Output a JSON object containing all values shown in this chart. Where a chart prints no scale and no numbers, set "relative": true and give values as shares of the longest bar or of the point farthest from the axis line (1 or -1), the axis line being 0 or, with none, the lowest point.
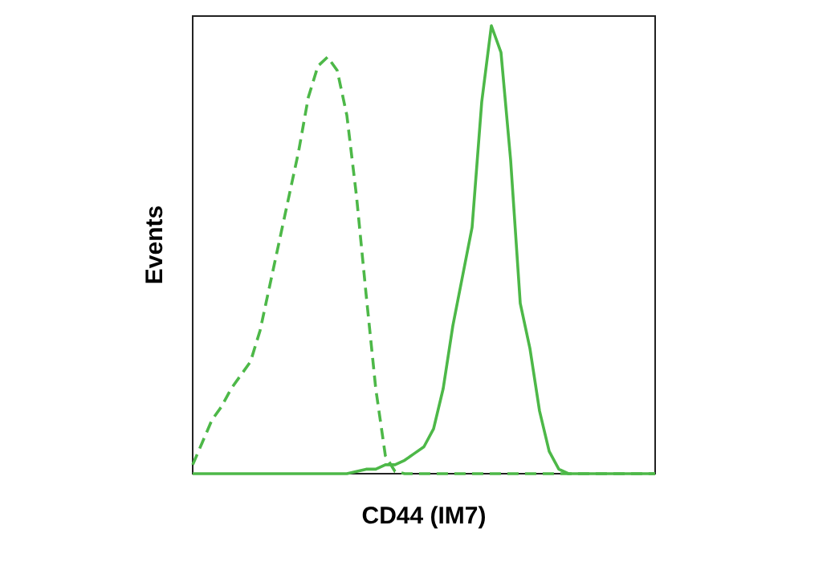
{
  "chart_data": {
    "type": "line",
    "relative": true,
    "xlabel": "CD44 (IM7)",
    "ylabel": "Events",
    "categories": [
      null,
      null,
      null,
      null,
      null,
      null,
      null,
      null,
      null,
      null,
      null,
      null,
      null,
      null,
      null,
      null,
      null,
      null,
      null,
      null,
      null,
      null,
      null,
      null,
      null,
      null,
      null,
      null,
      null,
      null,
      null,
      null,
      null,
      null,
      null,
      null,
      null,
      null,
      null,
      null,
      null,
      null,
      null,
      null,
      null,
      null,
      null,
      null,
      null
    ],
    "series": [
      {
        "color": "#4db848",
        "line_style": "dashed",
        "values": [
          0.02,
          0.07,
          0.12,
          0.15,
          0.19,
          0.22,
          0.25,
          0.32,
          0.42,
          0.52,
          0.62,
          0.72,
          0.84,
          0.91,
          0.93,
          0.9,
          0.8,
          0.62,
          0.4,
          0.19,
          0.04,
          0.005,
          0,
          0,
          0,
          0,
          0,
          0,
          0,
          0,
          0,
          0,
          0,
          0,
          0,
          0,
          0,
          0,
          0,
          0,
          0,
          0,
          0,
          0,
          0,
          0,
          0,
          0,
          0
        ]
      },
      {
        "color": "#4db848",
        "line_style": "solid",
        "values": [
          0,
          0,
          0,
          0,
          0,
          0,
          0,
          0,
          0,
          0,
          0,
          0,
          0,
          0,
          0,
          0,
          0,
          0.005,
          0.01,
          0.01,
          0.02,
          0.02,
          0.03,
          0.045,
          0.06,
          0.1,
          0.19,
          0.33,
          0.44,
          0.55,
          0.83,
          1,
          0.94,
          0.7,
          0.38,
          0.28,
          0.14,
          0.05,
          0.01,
          0,
          0,
          0,
          0,
          0,
          0,
          0,
          0,
          0,
          0
        ]
      }
    ]
  }
}
